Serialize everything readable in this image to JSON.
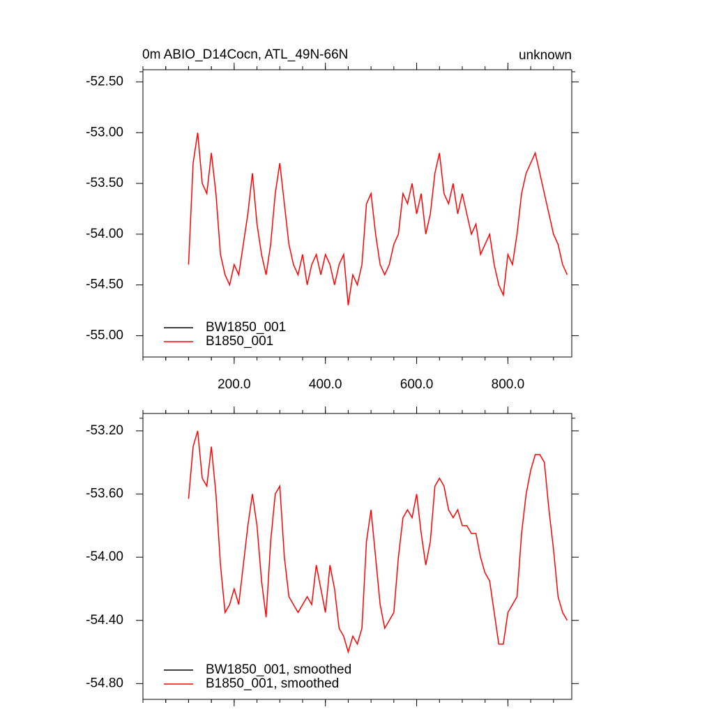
{
  "chart_data": [
    {
      "type": "line",
      "title": "0m ABIO_D14Cocn, ATL_49N-66N",
      "subtitle": "unknown",
      "x": [
        100,
        110,
        120,
        130,
        140,
        150,
        160,
        170,
        180,
        190,
        200,
        210,
        220,
        230,
        240,
        250,
        260,
        270,
        280,
        290,
        300,
        310,
        320,
        330,
        340,
        350,
        360,
        370,
        380,
        390,
        400,
        410,
        420,
        430,
        440,
        450,
        460,
        470,
        480,
        490,
        500,
        510,
        520,
        530,
        540,
        550,
        560,
        570,
        580,
        590,
        600,
        610,
        620,
        630,
        640,
        650,
        660,
        670,
        680,
        690,
        700,
        710,
        720,
        730,
        740,
        750,
        760,
        770,
        780,
        790,
        800,
        810,
        820,
        830,
        840,
        850,
        860,
        870,
        880,
        890,
        900,
        910,
        920,
        930
      ],
      "series": [
        {
          "name": "BW1850_001",
          "color": "#000000",
          "values": [
            null,
            null,
            null,
            null,
            null,
            null,
            null,
            null,
            null,
            null,
            null,
            null,
            null,
            null,
            null,
            null,
            null,
            null,
            null,
            null,
            null,
            null,
            null,
            null,
            null,
            null,
            null,
            null,
            null,
            null,
            null,
            null,
            null,
            null,
            null,
            null,
            null,
            null,
            null,
            null,
            null,
            null,
            null,
            null,
            null,
            null,
            null,
            null,
            null,
            null,
            null,
            null,
            null,
            null,
            null,
            null,
            null,
            null,
            null,
            null,
            null,
            null,
            null,
            null,
            null,
            null,
            null,
            null,
            null,
            null,
            null,
            null,
            null,
            null,
            null,
            null,
            null,
            null,
            null,
            null,
            null,
            null,
            null,
            null
          ]
        },
        {
          "name": "B1850_001",
          "color": "#ff0000",
          "values": [
            -54.3,
            -53.3,
            -53.0,
            -53.5,
            -53.6,
            -53.2,
            -53.6,
            -54.2,
            -54.4,
            -54.5,
            -54.3,
            -54.4,
            -54.1,
            -53.8,
            -53.4,
            -53.9,
            -54.2,
            -54.4,
            -54.1,
            -53.6,
            -53.3,
            -53.7,
            -54.1,
            -54.3,
            -54.4,
            -54.2,
            -54.5,
            -54.3,
            -54.2,
            -54.4,
            -54.2,
            -54.3,
            -54.5,
            -54.3,
            -54.2,
            -54.7,
            -54.4,
            -54.5,
            -54.3,
            -53.7,
            -53.6,
            -54.0,
            -54.3,
            -54.4,
            -54.3,
            -54.1,
            -54.0,
            -53.6,
            -53.7,
            -53.5,
            -53.8,
            -53.6,
            -54.0,
            -53.8,
            -53.4,
            -53.2,
            -53.6,
            -53.7,
            -53.5,
            -53.8,
            -53.6,
            -53.8,
            -54.0,
            -53.9,
            -54.2,
            -54.1,
            -54.0,
            -54.3,
            -54.5,
            -54.6,
            -54.2,
            -54.3,
            -54.0,
            -53.6,
            -53.4,
            -53.3,
            -53.2,
            -53.4,
            -53.6,
            -53.8,
            -54.0,
            -54.1,
            -54.3,
            -54.4
          ]
        }
      ],
      "xlim": [
        0,
        940
      ],
      "ylim": [
        -55.21,
        -52.38
      ],
      "xticks": [
        {
          "value": 200,
          "label": "200.0"
        },
        {
          "value": 400,
          "label": "400.0"
        },
        {
          "value": 600,
          "label": "600.0"
        },
        {
          "value": 800,
          "label": "800.0"
        }
      ],
      "yticks": [
        {
          "value": -52.5,
          "label": "-52.50"
        },
        {
          "value": -53,
          "label": "-53.00"
        },
        {
          "value": -53.5,
          "label": "-53.50"
        },
        {
          "value": -54,
          "label": "-54.00"
        },
        {
          "value": -54.5,
          "label": "-54.50"
        },
        {
          "value": -55,
          "label": "-55.00"
        }
      ],
      "legend": "lower left"
    },
    {
      "type": "line",
      "x": [
        100,
        110,
        120,
        130,
        140,
        150,
        160,
        170,
        180,
        190,
        200,
        210,
        220,
        230,
        240,
        250,
        260,
        270,
        280,
        290,
        300,
        310,
        320,
        330,
        340,
        350,
        360,
        370,
        380,
        390,
        400,
        410,
        420,
        430,
        440,
        450,
        460,
        470,
        480,
        490,
        500,
        510,
        520,
        530,
        540,
        550,
        560,
        570,
        580,
        590,
        600,
        610,
        620,
        630,
        640,
        650,
        660,
        670,
        680,
        690,
        700,
        710,
        720,
        730,
        740,
        750,
        760,
        770,
        780,
        790,
        800,
        810,
        820,
        830,
        840,
        850,
        860,
        870,
        880,
        890,
        900,
        910,
        920,
        930
      ],
      "series": [
        {
          "name": "BW1850_001, smoothed",
          "color": "#000000",
          "values": [
            null,
            null,
            null,
            null,
            null,
            null,
            null,
            null,
            null,
            null,
            null,
            null,
            null,
            null,
            null,
            null,
            null,
            null,
            null,
            null,
            null,
            null,
            null,
            null,
            null,
            null,
            null,
            null,
            null,
            null,
            null,
            null,
            null,
            null,
            null,
            null,
            null,
            null,
            null,
            null,
            null,
            null,
            null,
            null,
            null,
            null,
            null,
            null,
            null,
            null,
            null,
            null,
            null,
            null,
            null,
            null,
            null,
            null,
            null,
            null,
            null,
            null,
            null,
            null,
            null,
            null,
            null,
            null,
            null,
            null,
            null,
            null,
            null,
            null,
            null,
            null,
            null,
            null,
            null,
            null,
            null,
            null,
            null,
            null
          ]
        },
        {
          "name": "B1850_001, smoothed",
          "color": "#ff0000",
          "values": [
            -53.63,
            -53.3,
            -53.2,
            -53.5,
            -53.55,
            -53.3,
            -53.6,
            -54.05,
            -54.35,
            -54.3,
            -54.2,
            -54.3,
            -54.05,
            -53.8,
            -53.6,
            -53.8,
            -54.15,
            -54.38,
            -53.9,
            -53.6,
            -53.55,
            -54.0,
            -54.25,
            -54.3,
            -54.35,
            -54.3,
            -54.25,
            -54.3,
            -54.05,
            -54.2,
            -54.35,
            -54.05,
            -54.2,
            -54.45,
            -54.5,
            -54.6,
            -54.5,
            -54.55,
            -54.45,
            -53.9,
            -53.7,
            -54.0,
            -54.3,
            -54.45,
            -54.4,
            -54.35,
            -54.0,
            -53.75,
            -53.7,
            -53.75,
            -53.6,
            -53.85,
            -54.05,
            -53.9,
            -53.55,
            -53.5,
            -53.55,
            -53.7,
            -53.75,
            -53.7,
            -53.8,
            -53.8,
            -53.85,
            -53.85,
            -54.0,
            -54.1,
            -54.15,
            -54.35,
            -54.55,
            -54.55,
            -54.35,
            -54.3,
            -54.25,
            -53.85,
            -53.6,
            -53.45,
            -53.35,
            -53.35,
            -53.4,
            -53.7,
            -53.95,
            -54.25,
            -54.35,
            -54.4
          ]
        }
      ],
      "xlim": [
        0,
        940
      ],
      "ylim": [
        -54.9,
        -53.09
      ],
      "xticks": [
        200,
        400,
        600,
        800
      ],
      "yticks": [
        {
          "value": -53.2,
          "label": "-53.20"
        },
        {
          "value": -53.6,
          "label": "-53.60"
        },
        {
          "value": -54,
          "label": "-54.00"
        },
        {
          "value": -54.4,
          "label": "-54.40"
        },
        {
          "value": -54.8,
          "label": "-54.80"
        }
      ],
      "legend": "lower left"
    }
  ]
}
